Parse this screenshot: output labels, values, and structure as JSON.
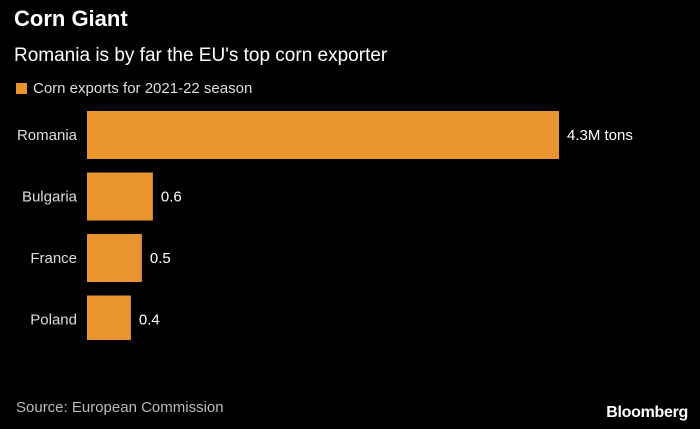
{
  "header": {
    "title": "Corn Giant",
    "subtitle": "Romania is by far the EU's top corn exporter"
  },
  "legend": {
    "label": "Corn exports for 2021-22 season"
  },
  "colors": {
    "bar": "#e8952f",
    "background": "#000000"
  },
  "chart_data": {
    "type": "bar",
    "orientation": "horizontal",
    "categories": [
      "Romania",
      "Bulgaria",
      "France",
      "Poland"
    ],
    "series": [
      {
        "name": "Corn exports for 2021-22 season",
        "values": [
          4.3,
          0.6,
          0.5,
          0.4
        ]
      }
    ],
    "data_labels": [
      "4.3M tons",
      "0.6",
      "0.5",
      "0.4"
    ],
    "xlim": [
      0,
      4.3
    ],
    "grid": false,
    "legend_position": "top-left"
  },
  "footer": {
    "source": "Source: European Commission",
    "brand": "Bloomberg"
  }
}
